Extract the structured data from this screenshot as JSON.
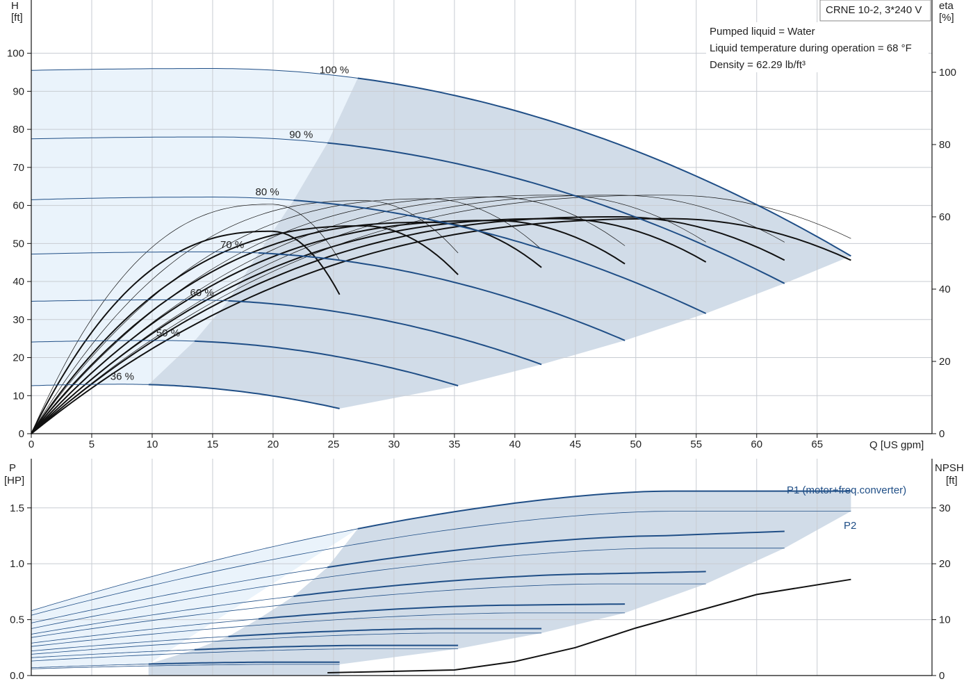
{
  "product_label": "CRNE 10-2, 3*240 V",
  "conditions": [
    "Pumped liquid = Water",
    "Liquid temperature during operation = 68 °F",
    "Density = 62.29 lb/ft³"
  ],
  "colors": {
    "curve_blue": "#1f4e86",
    "fill_region": "#d1dce8",
    "fill_light": "#eaf3fb",
    "grid": "#c8ccd2",
    "black": "#111111"
  },
  "chart_data": [
    {
      "type": "line",
      "panel": "head-efficiency",
      "xlabel": "Q [US gpm]",
      "ylabel_left": [
        "H",
        "[ft]"
      ],
      "ylabel_right": [
        "eta",
        "[%]"
      ],
      "xlim": [
        0,
        74.5
      ],
      "ylim_left": [
        0,
        114
      ],
      "ylim_right": [
        0,
        100
      ],
      "x_ticks": [
        0,
        5,
        10,
        15,
        20,
        25,
        30,
        35,
        40,
        45,
        50,
        55,
        60,
        65
      ],
      "y_ticks_left": [
        0,
        10,
        20,
        30,
        40,
        50,
        60,
        70,
        80,
        90,
        100
      ],
      "y_ticks_right": [
        0,
        20,
        40,
        60,
        80,
        100
      ],
      "grid": true,
      "speed_curves": [
        {
          "label": "100 %",
          "H0": 95.5,
          "Hp": 96,
          "Qp": 15,
          "Qmin": 27,
          "Qmax": 67.8,
          "Hmax": 46.7
        },
        {
          "label": "90 %",
          "H0": 77.5,
          "Hp": 78,
          "Qp": 15,
          "Qmin": 24.5,
          "Qmax": 62.3,
          "Hmax": 39.5
        },
        {
          "label": "80 %",
          "H0": 61.5,
          "Hp": 62.2,
          "Qp": 15,
          "Qmin": 21.7,
          "Qmax": 55.8,
          "Hmax": 31.6
        },
        {
          "label": "70 %",
          "H0": 47.2,
          "Hp": 47.8,
          "Qp": 15,
          "Qmin": 18.8,
          "Qmax": 49.1,
          "Hmax": 24.5
        },
        {
          "label": "60 %",
          "H0": 34.8,
          "Hp": 35.2,
          "Qp": 12.5,
          "Qmin": 16.3,
          "Qmax": 42.2,
          "Hmax": 18.2
        },
        {
          "label": "50 %",
          "H0": 24.1,
          "Hp": 24.5,
          "Qp": 10.5,
          "Qmin": 13.5,
          "Qmax": 35.3,
          "Hmax": 12.6
        },
        {
          "label": "36 %",
          "H0": 12.6,
          "Hp": 13,
          "Qp": 7.5,
          "Qmin": 9.7,
          "Qmax": 25.5,
          "Hmax": 6.6
        }
      ],
      "efficiency_curves": [
        {
          "Qend": 67.8,
          "eta_end": 48,
          "eta_peak": 59.5,
          "bold": true
        },
        {
          "Qend": 67.8,
          "eta_end": 54,
          "eta_peak": 66,
          "bold": false
        },
        {
          "Qend": 62.3,
          "eta_end": 48,
          "eta_peak": 60,
          "bold": true
        },
        {
          "Qend": 62.3,
          "eta_end": 53,
          "eta_peak": 66,
          "bold": false
        },
        {
          "Qend": 55.8,
          "eta_end": 47.5,
          "eta_peak": 59.5,
          "bold": true
        },
        {
          "Qend": 55.8,
          "eta_end": 53,
          "eta_peak": 66,
          "bold": false
        },
        {
          "Qend": 49.1,
          "eta_end": 47,
          "eta_peak": 59,
          "bold": true
        },
        {
          "Qend": 49.1,
          "eta_end": 52,
          "eta_peak": 65.5,
          "bold": false
        },
        {
          "Qend": 42.2,
          "eta_end": 46,
          "eta_peak": 58.5,
          "bold": true
        },
        {
          "Qend": 42.2,
          "eta_end": 51,
          "eta_peak": 65,
          "bold": false
        },
        {
          "Qend": 35.3,
          "eta_end": 44,
          "eta_peak": 57.5,
          "bold": true
        },
        {
          "Qend": 35.3,
          "eta_end": 50,
          "eta_peak": 64.5,
          "bold": false
        },
        {
          "Qend": 25.5,
          "eta_end": 38.5,
          "eta_peak": 56,
          "bold": true
        },
        {
          "Qend": 25.5,
          "eta_end": 48,
          "eta_peak": 63.5,
          "bold": false
        }
      ]
    },
    {
      "type": "line",
      "panel": "power-npsh",
      "ylabel_left": [
        "P",
        "[HP]"
      ],
      "ylabel_right": [
        "NPSH",
        "[ft]"
      ],
      "xlim": [
        0,
        74.5
      ],
      "ylim_left": [
        0,
        1.94
      ],
      "ylim_right": [
        0,
        38.8
      ],
      "y_ticks_left": [
        0.0,
        0.5,
        1.0,
        1.5
      ],
      "y_ticks_right": [
        0,
        10,
        20,
        30
      ],
      "grid": true,
      "series_labels": {
        "p1": "P1 (motor+freq.converter)",
        "p2": "P2"
      },
      "p1_curves": [
        {
          "P0": 0.58,
          "Pmin": 1.23,
          "Pkink": 1.65,
          "Pmax": 1.65,
          "Qmin": 27,
          "Qk": 52.5,
          "Qmax": 67.8
        },
        {
          "P0": 0.47,
          "Pmin": 0.92,
          "Pkink": 1.25,
          "Pmax": 1.29,
          "Qmin": 24.5,
          "Qk": 52,
          "Qmax": 62.3
        },
        {
          "P0": 0.37,
          "Pmin": 0.66,
          "Pkink": 0.91,
          "Pmax": 0.93,
          "Qmin": 21.7,
          "Qk": 47,
          "Qmax": 55.8
        },
        {
          "P0": 0.29,
          "Pmin": 0.51,
          "Pkink": 0.63,
          "Pmax": 0.64,
          "Qmin": 18.8,
          "Qk": 40,
          "Qmax": 49.1
        },
        {
          "P0": 0.22,
          "Pmin": 0.33,
          "Pkink": 0.42,
          "Pmax": 0.42,
          "Qmin": 16.3,
          "Qk": 34,
          "Qmax": 42.2
        },
        {
          "P0": 0.16,
          "Pmin": 0.22,
          "Pkink": 0.27,
          "Pmax": 0.27,
          "Qmin": 13.5,
          "Qk": 28,
          "Qmax": 35.3
        },
        {
          "P0": 0.07,
          "Pmin": 0.07,
          "Pkink": 0.12,
          "Pmax": 0.12,
          "Qmin": 9.7,
          "Qk": 20,
          "Qmax": 25.5
        }
      ],
      "p2_curves": [
        {
          "P0": 0.54,
          "Pmax": 1.47,
          "Qk": 52.5,
          "Qmax": 67.8
        },
        {
          "P0": 0.42,
          "Pmax": 1.14,
          "Qk": 52,
          "Qmax": 62.3
        },
        {
          "P0": 0.34,
          "Pmax": 0.82,
          "Qk": 47,
          "Qmax": 55.8
        },
        {
          "P0": 0.26,
          "Pmax": 0.56,
          "Qk": 40,
          "Qmax": 49.1
        },
        {
          "P0": 0.19,
          "Pmax": 0.38,
          "Qk": 34,
          "Qmax": 42.2
        },
        {
          "P0": 0.13,
          "Pmax": 0.24,
          "Qk": 28,
          "Qmax": 35.3
        },
        {
          "P0": 0.06,
          "Pmax": 0.1,
          "Qk": 20,
          "Qmax": 25.5
        }
      ],
      "npsh_curve": {
        "Q": [
          24.5,
          35,
          40,
          45,
          50,
          55,
          60,
          67.8
        ],
        "NPSH": [
          0.5,
          1.0,
          2.5,
          5.0,
          8.5,
          11.5,
          14.5,
          17.2
        ]
      }
    }
  ]
}
